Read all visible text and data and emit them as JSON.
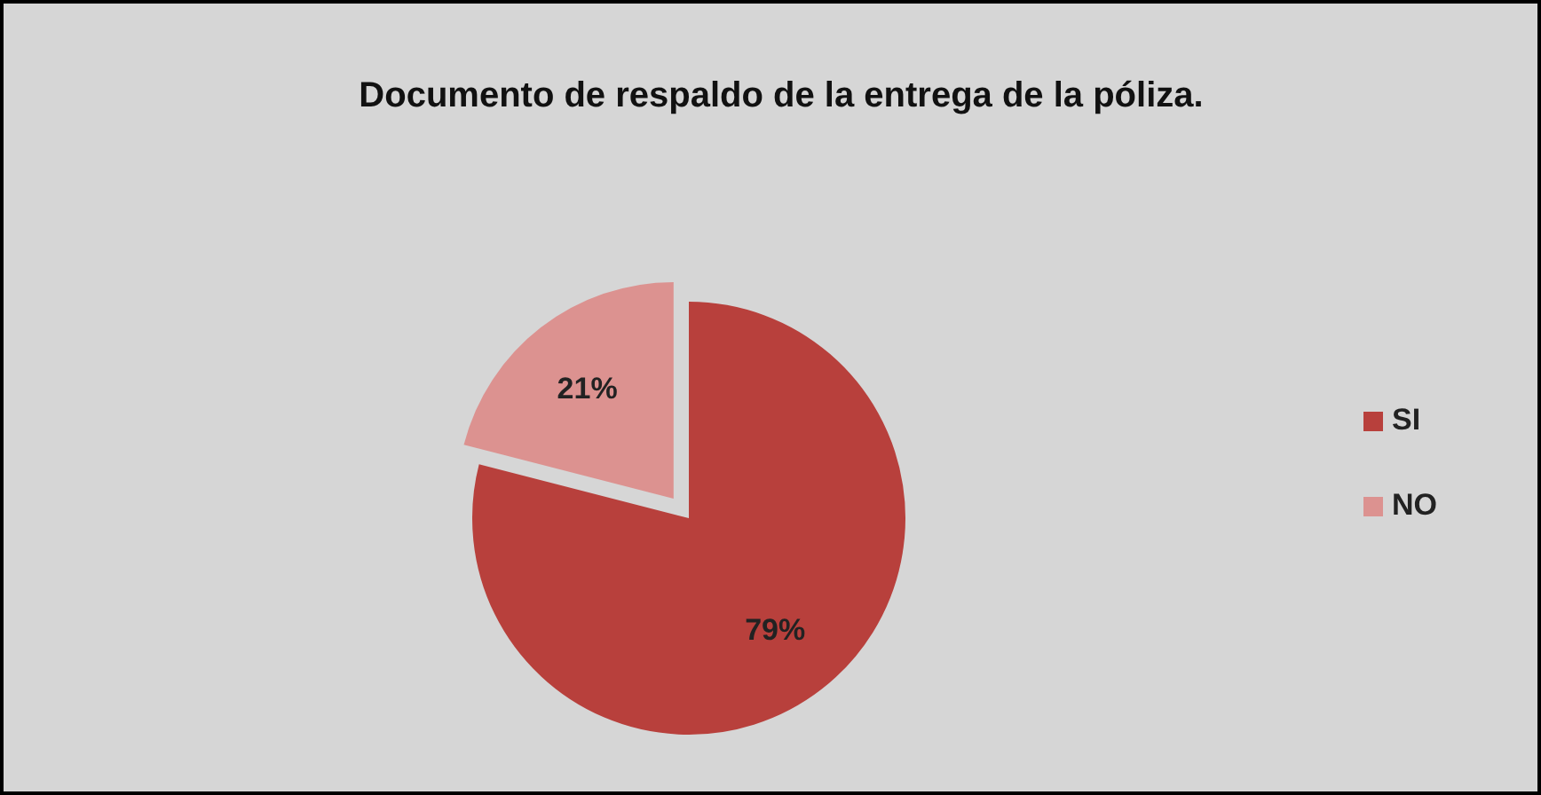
{
  "chart_data": {
    "type": "pie",
    "title": "Documento de respaldo de la entrega de la póliza.",
    "categories": [
      "SI",
      "NO"
    ],
    "values": [
      79,
      21
    ],
    "value_labels": [
      "79%",
      "21%"
    ],
    "colors": [
      "#b8403c",
      "#dc9290"
    ],
    "data_labels": true,
    "legend": "right"
  }
}
